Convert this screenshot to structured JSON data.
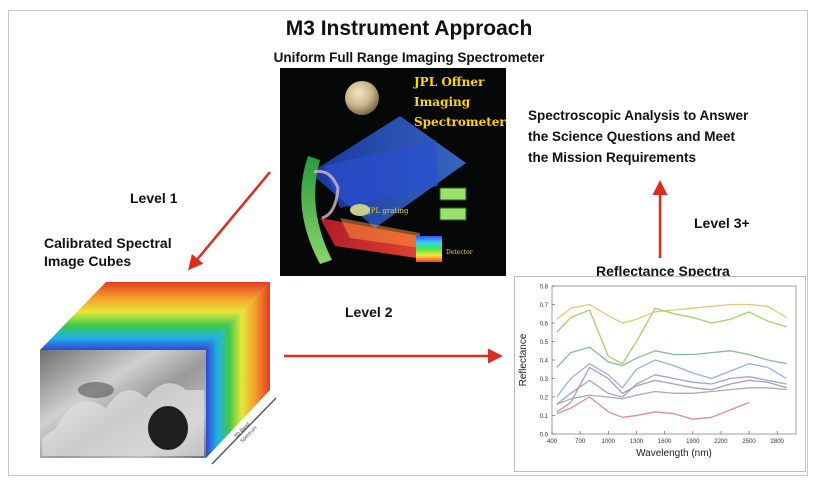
{
  "title": "M3 Instrument Approach",
  "subtitle": "Uniform Full Range Imaging Spectrometer",
  "instrument_image": {
    "lines": [
      "JPL Offner",
      "Imaging",
      "Spectrometer"
    ],
    "grating_label": "JPL grating",
    "detector_label": "Detector"
  },
  "level1": "Level 1",
  "cubes_label": [
    "Calibrated Spectral",
    "Image Cubes"
  ],
  "cube_axis_label": [
    "3D Band",
    "Spectrum"
  ],
  "level2": "Level 2",
  "level3": "Level 3+",
  "analysis_lines": [
    "Spectroscopic Analysis to Answer",
    "the Science Questions and Meet",
    "the Mission Requirements"
  ],
  "spectra_title": "Reflectance Spectra",
  "colors": {
    "arrow": "#d92d20",
    "instrument_bg": "#050806",
    "instrument_text": "#ffd400"
  },
  "chart_data": {
    "type": "line",
    "title": "",
    "xlabel": "Wavelength (nm)",
    "ylabel": "Reflectance",
    "xlim": [
      400,
      3000
    ],
    "ylim": [
      0,
      0.8
    ],
    "x_ticks": [
      "400",
      "700",
      "1000",
      "1300",
      "1600",
      "1900",
      "2200",
      "2500",
      "2800"
    ],
    "y_ticks": [
      "0.0",
      "0.1",
      "0.2",
      "0.3",
      "0.4",
      "0.5",
      "0.6",
      "0.7",
      "0.8"
    ],
    "x": [
      450,
      600,
      800,
      1000,
      1150,
      1300,
      1500,
      1700,
      1900,
      2100,
      2300,
      2500,
      2700,
      2900
    ],
    "series": [
      {
        "color": "#e6c46a",
        "values": [
          0.62,
          0.68,
          0.7,
          0.64,
          0.6,
          0.62,
          0.66,
          0.67,
          0.68,
          0.69,
          0.7,
          0.7,
          0.69,
          0.63
        ]
      },
      {
        "color": "#a7c96a",
        "values": [
          0.55,
          0.63,
          0.67,
          0.42,
          0.38,
          0.5,
          0.68,
          0.65,
          0.63,
          0.6,
          0.62,
          0.66,
          0.61,
          0.58
        ]
      },
      {
        "color": "#7fb88f",
        "values": [
          0.36,
          0.44,
          0.47,
          0.39,
          0.37,
          0.41,
          0.45,
          0.43,
          0.43,
          0.44,
          0.45,
          0.43,
          0.4,
          0.38
        ]
      },
      {
        "color": "#8fb0d8",
        "values": [
          0.2,
          0.3,
          0.38,
          0.32,
          0.25,
          0.35,
          0.4,
          0.37,
          0.33,
          0.3,
          0.34,
          0.38,
          0.36,
          0.3
        ]
      },
      {
        "color": "#9aa0c8",
        "values": [
          0.16,
          0.22,
          0.29,
          0.22,
          0.2,
          0.27,
          0.32,
          0.3,
          0.28,
          0.27,
          0.3,
          0.31,
          0.29,
          0.27
        ]
      },
      {
        "color": "#b08fc0",
        "values": [
          0.12,
          0.17,
          0.36,
          0.3,
          0.22,
          0.26,
          0.29,
          0.27,
          0.25,
          0.24,
          0.27,
          0.29,
          0.28,
          0.25
        ]
      },
      {
        "color": "#a8a8a8",
        "values": [
          0.16,
          0.19,
          0.21,
          0.2,
          0.19,
          0.21,
          0.23,
          0.22,
          0.22,
          0.23,
          0.24,
          0.25,
          0.25,
          0.24
        ]
      },
      {
        "color": "#e58484",
        "values": [
          0.11,
          0.14,
          0.2,
          0.12,
          0.09,
          0.1,
          0.12,
          0.11,
          0.08,
          0.09,
          0.13,
          0.17,
          null,
          null
        ]
      }
    ]
  }
}
